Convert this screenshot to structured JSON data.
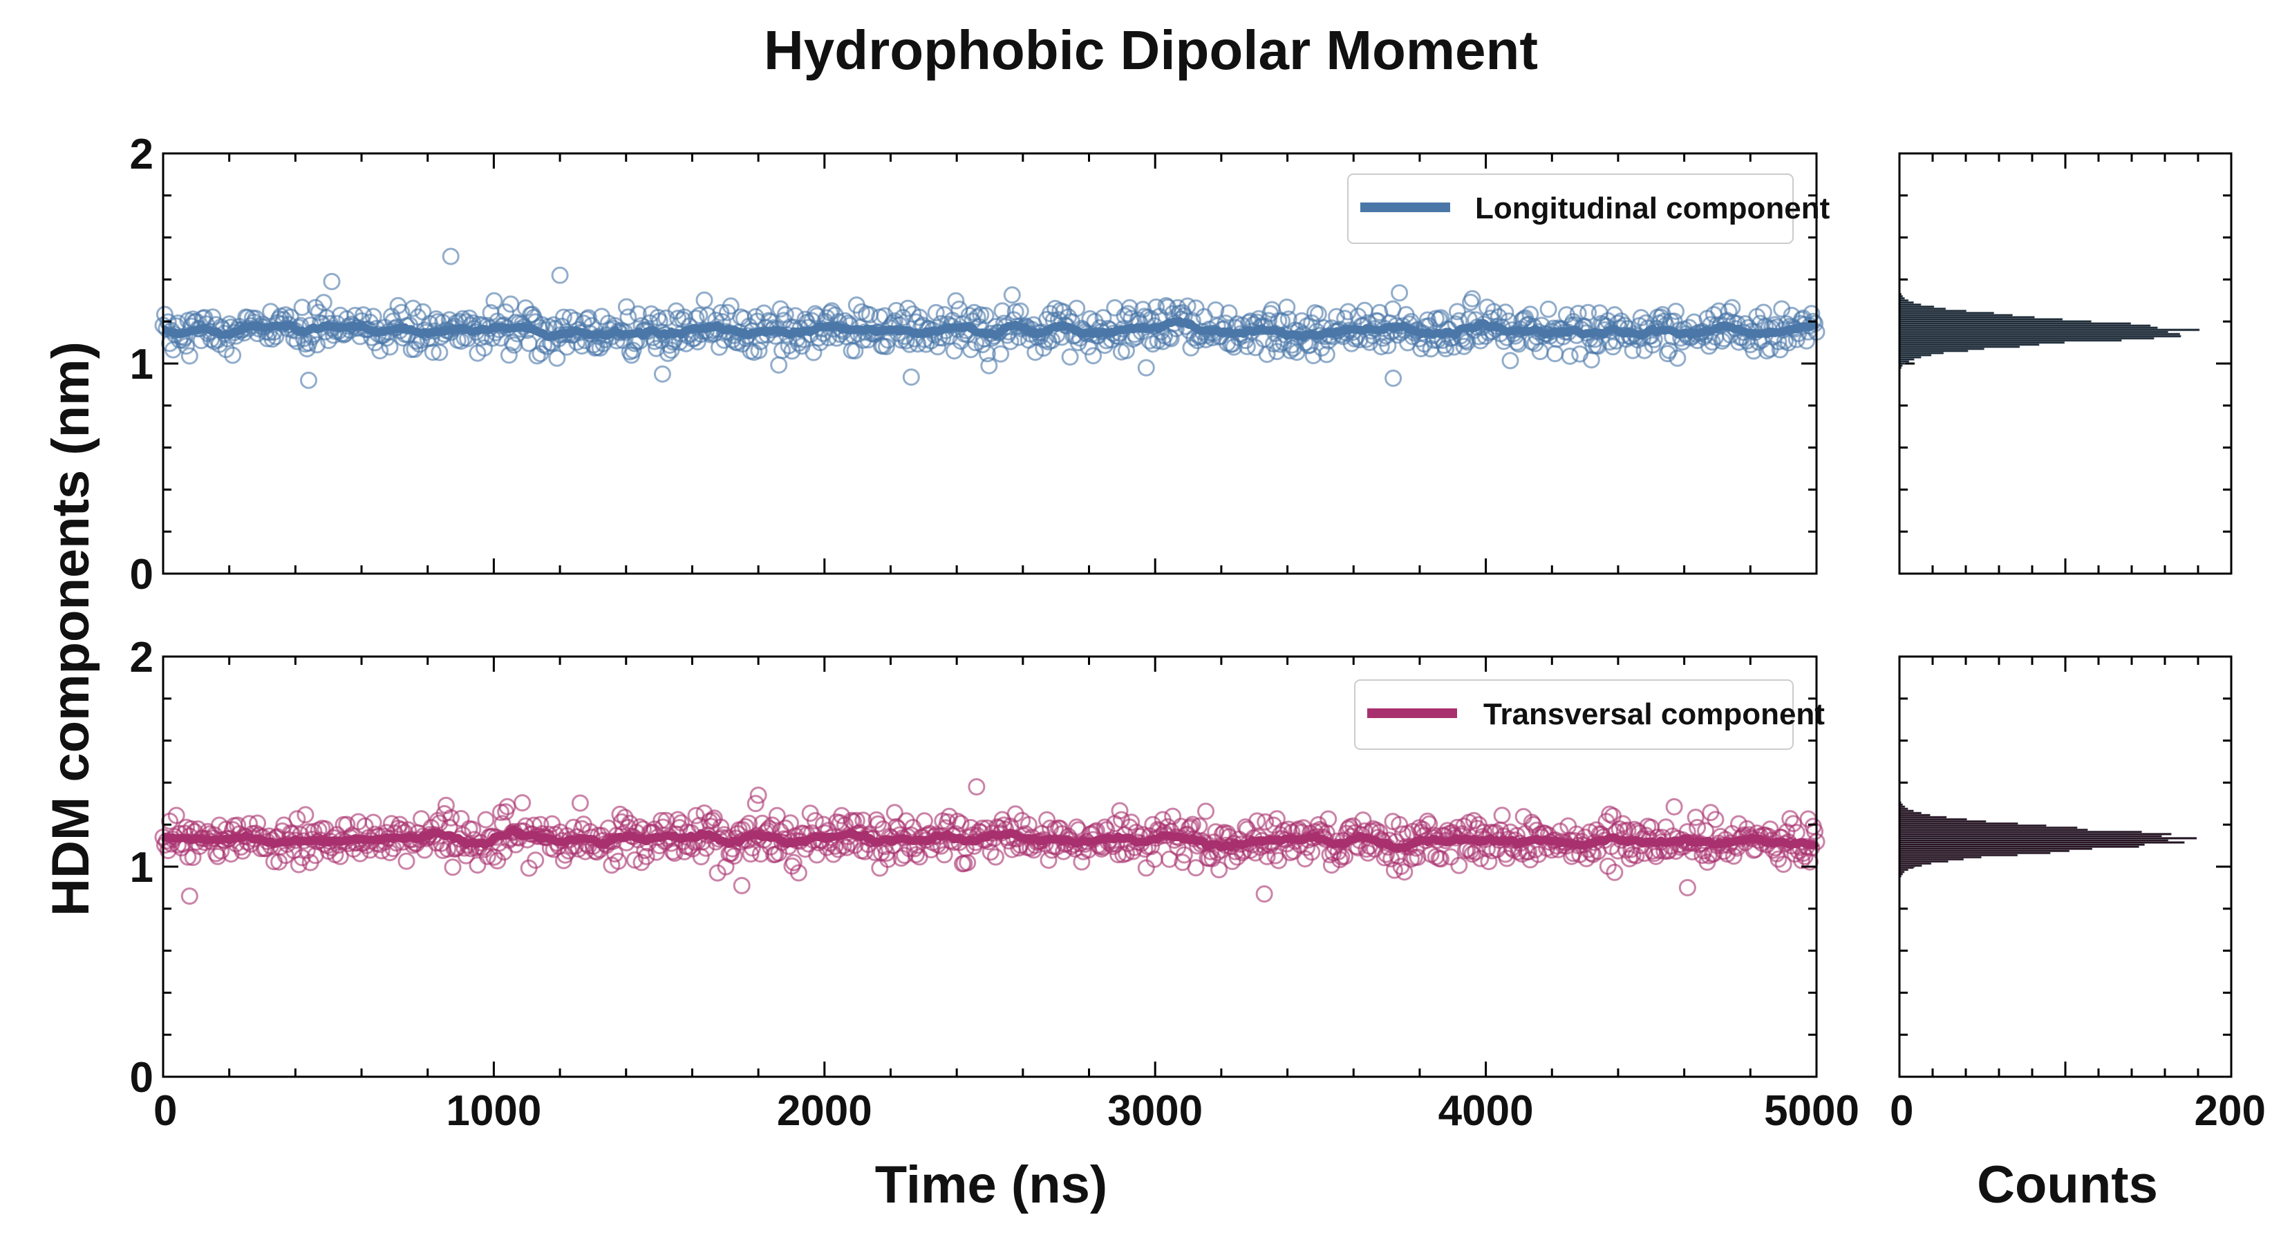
{
  "chart_data": {
    "type": "scatter",
    "title": "Hydrophobic Dipolar Moment",
    "ylabel": "HDM components (nm)",
    "xlabel": "Time (ns)",
    "hist_xlabel": "Counts",
    "xlim": [
      0,
      5000
    ],
    "ylim": [
      0,
      2
    ],
    "hist_xlim": [
      0,
      200
    ],
    "x_ticks": [
      "0",
      "1000",
      "2000",
      "3000",
      "4000",
      "5000"
    ],
    "y_ticks": [
      "0",
      "1",
      "2"
    ],
    "hist_ticks": [
      "0",
      "200"
    ],
    "series": [
      {
        "name": "Longitudinal component",
        "color": "#4a77a8",
        "hist_color": "#1e2a36",
        "mean": 1.155,
        "std": 0.055,
        "n_points": 1000,
        "hist_peak_count": 175,
        "outliers": [
          [
            870,
            1.51
          ],
          [
            1200,
            1.42
          ],
          [
            510,
            1.39
          ],
          [
            440,
            0.92
          ],
          [
            3720,
            0.93
          ],
          [
            1510,
            0.95
          ]
        ]
      },
      {
        "name": "Transversal component",
        "color": "#a8306e",
        "hist_color": "#2a1422",
        "mean": 1.13,
        "std": 0.055,
        "n_points": 1000,
        "hist_peak_count": 170,
        "outliers": [
          [
            2460,
            1.38
          ],
          [
            1800,
            1.34
          ],
          [
            80,
            0.86
          ],
          [
            3330,
            0.87
          ],
          [
            1750,
            0.91
          ],
          [
            4610,
            0.9
          ]
        ]
      }
    ]
  }
}
